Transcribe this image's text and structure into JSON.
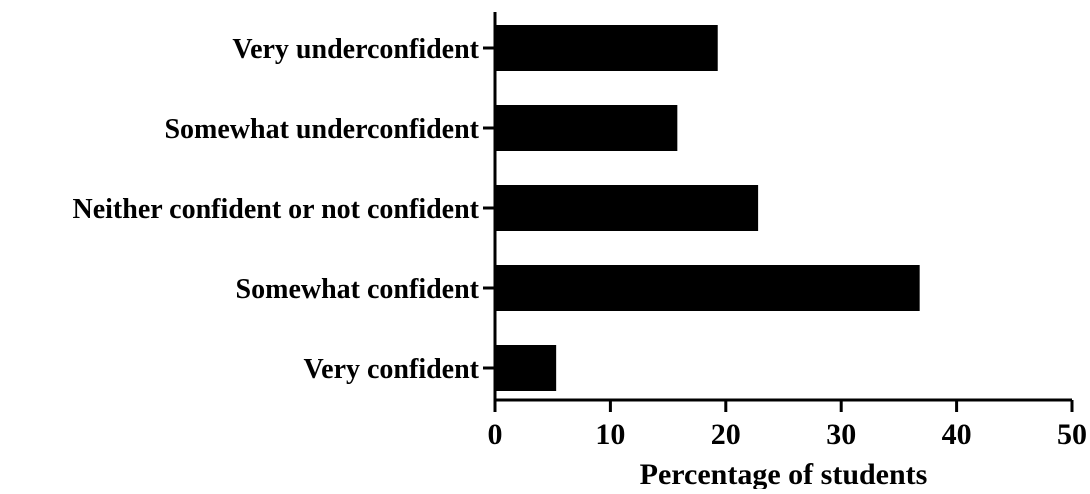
{
  "chart_data": {
    "type": "bar",
    "orientation": "horizontal",
    "categories": [
      "Very underconfident",
      "Somewhat underconfident",
      "Neither confident or not confident",
      "Somewhat confident",
      "Very confident"
    ],
    "values": [
      19.3,
      15.8,
      22.8,
      36.8,
      5.3
    ],
    "xlabel": "Percentage of students",
    "ylabel": "",
    "title": "",
    "xlim": [
      0,
      50
    ],
    "xticks": [
      "0",
      "10",
      "20",
      "30",
      "40",
      "50"
    ],
    "grid": false,
    "bar_color": "#000000"
  }
}
